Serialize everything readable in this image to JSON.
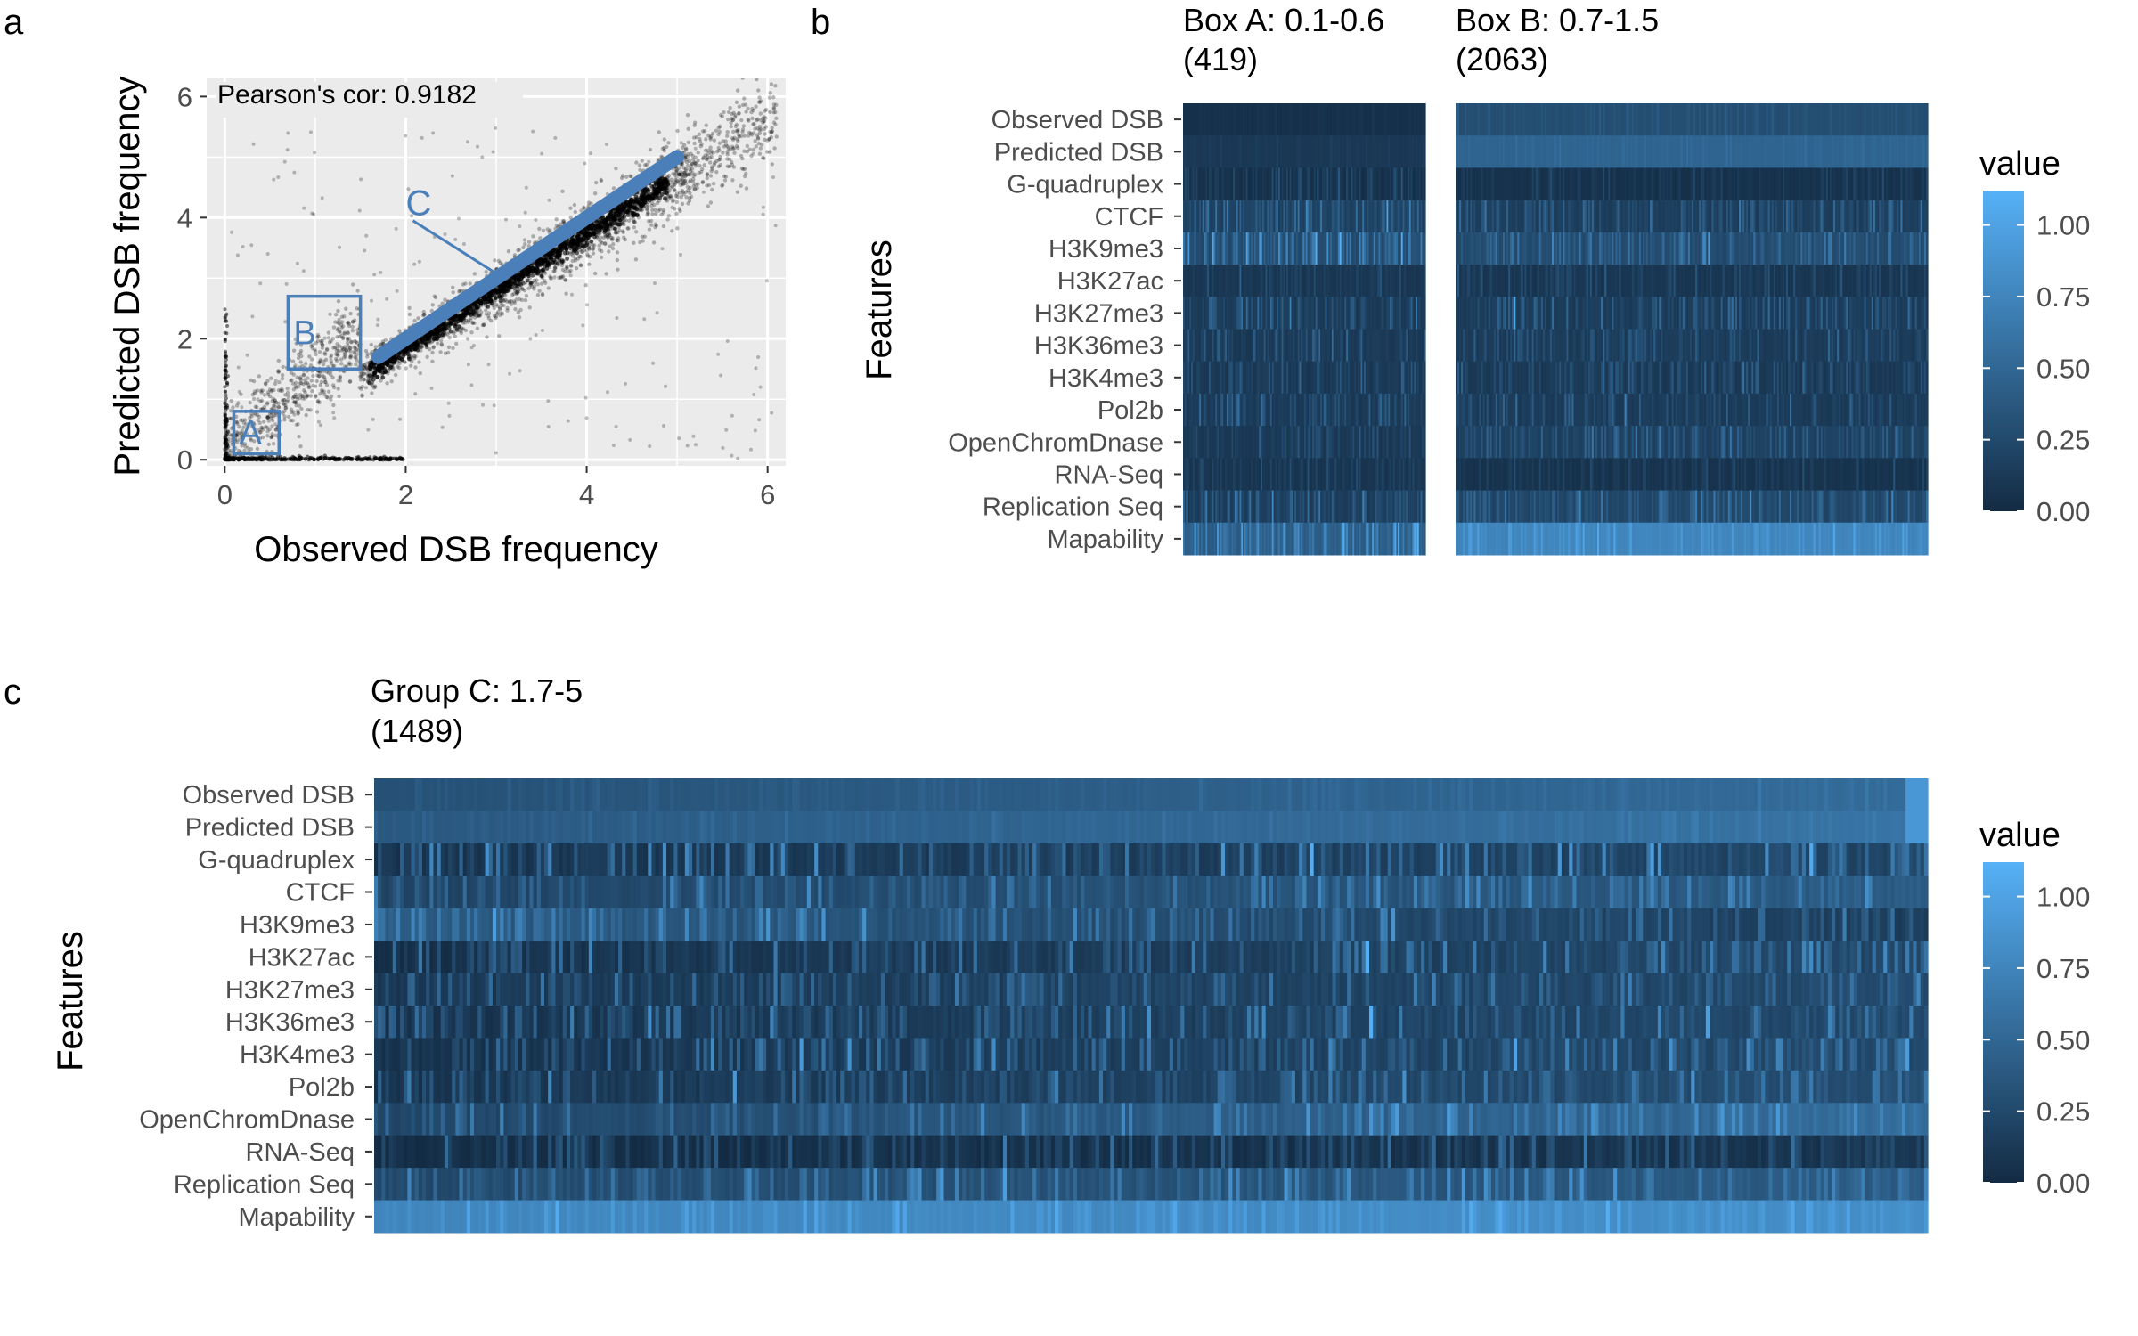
{
  "panel_labels": {
    "a": "a",
    "b": "b",
    "c": "c"
  },
  "colors": {
    "panel_bg": "#ebebeb",
    "grid": "#ffffff",
    "points": "#000000",
    "highlight": "#4a7fba",
    "low": "#132b43",
    "high": "#56b1f7"
  },
  "chart_data": [
    {
      "panel": "a",
      "type": "scatter",
      "title": "",
      "xlabel": "Observed DSB frequency",
      "ylabel": "Predicted DSB frequency",
      "xlim": [
        -0.2,
        6.2
      ],
      "ylim": [
        -0.1,
        6.3
      ],
      "xticks": [
        0,
        2,
        4,
        6
      ],
      "yticks": [
        0,
        2,
        4,
        6
      ],
      "grid": true,
      "annotation": "Pearson's cor: 0.9182",
      "pearson_r": 0.9182,
      "point_cloud": {
        "description_note": "",
        "main_trend": {
          "x": [
            0.0,
            6.0
          ],
          "y": [
            0.0,
            5.6
          ]
        },
        "observed_only_band": {
          "x": [
            0.0,
            2.0
          ],
          "y": [
            0.0,
            0.0
          ]
        },
        "predicted_only_band": {
          "x": [
            0.0,
            0.0
          ],
          "y": [
            0.0,
            2.5
          ]
        }
      },
      "highlight_line": {
        "label": "C",
        "x": [
          1.7,
          5.0
        ],
        "y": [
          1.7,
          5.0
        ]
      },
      "boxes": [
        {
          "label": "A",
          "x": [
            0.1,
            0.6
          ],
          "y": [
            0.1,
            0.8
          ]
        },
        {
          "label": "B",
          "x": [
            0.7,
            1.5
          ],
          "y": [
            1.5,
            2.7
          ]
        }
      ]
    },
    {
      "panel": "b-left",
      "type": "heatmap",
      "title": "Box A: 0.1-0.6",
      "subtitle": "(419)",
      "ylabel": "Features",
      "rows": [
        "Observed DSB",
        "Predicted DSB",
        "G-quadruplex",
        "CTCF",
        "H3K9me3",
        "H3K27ac",
        "H3K27me3",
        "H3K36me3",
        "H3K4me3",
        "Pol2b",
        "OpenChromDnase",
        "RNA-Seq",
        "Replication Seq",
        "Mapability"
      ],
      "n_columns": 419,
      "row_mean": [
        0.05,
        0.12,
        0.08,
        0.25,
        0.35,
        0.12,
        0.18,
        0.16,
        0.15,
        0.17,
        0.14,
        0.1,
        0.2,
        0.5
      ],
      "row_var": [
        0.02,
        0.03,
        0.12,
        0.25,
        0.3,
        0.1,
        0.2,
        0.18,
        0.18,
        0.18,
        0.12,
        0.1,
        0.22,
        0.3
      ]
    },
    {
      "panel": "b-right",
      "type": "heatmap",
      "title": "Box B: 0.7-1.5",
      "subtitle": "(2063)",
      "rows": [
        "Observed DSB",
        "Predicted DSB",
        "G-quadruplex",
        "CTCF",
        "H3K9me3",
        "H3K27ac",
        "H3K27me3",
        "H3K36me3",
        "H3K4me3",
        "Pol2b",
        "OpenChromDnase",
        "RNA-Seq",
        "Replication Seq",
        "Mapability"
      ],
      "n_columns": 2063,
      "row_mean": [
        0.3,
        0.48,
        0.07,
        0.2,
        0.32,
        0.12,
        0.18,
        0.17,
        0.15,
        0.17,
        0.22,
        0.08,
        0.28,
        0.78
      ],
      "row_var": [
        0.05,
        0.03,
        0.08,
        0.18,
        0.22,
        0.12,
        0.18,
        0.16,
        0.16,
        0.16,
        0.16,
        0.08,
        0.2,
        0.12
      ]
    },
    {
      "panel": "c",
      "type": "heatmap",
      "title": "Group C: 1.7-5",
      "subtitle": "(1489)",
      "ylabel": "Features",
      "rows": [
        "Observed DSB",
        "Predicted DSB",
        "G-quadruplex",
        "CTCF",
        "H3K9me3",
        "H3K27ac",
        "H3K27me3",
        "H3K36me3",
        "H3K4me3",
        "Pol2b",
        "OpenChromDnase",
        "RNA-Seq",
        "Replication Seq",
        "Mapability"
      ],
      "n_columns": 1489,
      "row_start": [
        0.32,
        0.38,
        0.15,
        0.25,
        0.45,
        0.1,
        0.15,
        0.12,
        0.12,
        0.12,
        0.25,
        0.06,
        0.3,
        0.78
      ],
      "row_end": [
        0.55,
        0.62,
        0.3,
        0.45,
        0.2,
        0.3,
        0.3,
        0.32,
        0.32,
        0.35,
        0.6,
        0.12,
        0.45,
        0.85
      ],
      "row_var": [
        0.04,
        0.04,
        0.3,
        0.2,
        0.22,
        0.25,
        0.22,
        0.25,
        0.25,
        0.22,
        0.2,
        0.2,
        0.22,
        0.1
      ]
    }
  ],
  "legend_b": {
    "title": "value",
    "ticks": [
      {
        "value": 1.0,
        "label": "1.00"
      },
      {
        "value": 0.75,
        "label": "0.75"
      },
      {
        "value": 0.5,
        "label": "0.50"
      },
      {
        "value": 0.25,
        "label": "0.25"
      },
      {
        "value": 0.0,
        "label": "0.00"
      }
    ],
    "range": [
      0.0,
      1.12
    ]
  },
  "legend_c": {
    "title": "value",
    "ticks": [
      {
        "value": 1.0,
        "label": "1.00"
      },
      {
        "value": 0.75,
        "label": "0.75"
      },
      {
        "value": 0.5,
        "label": "0.50"
      },
      {
        "value": 0.25,
        "label": "0.25"
      },
      {
        "value": 0.0,
        "label": "0.00"
      }
    ],
    "range": [
      0.0,
      1.12
    ]
  }
}
